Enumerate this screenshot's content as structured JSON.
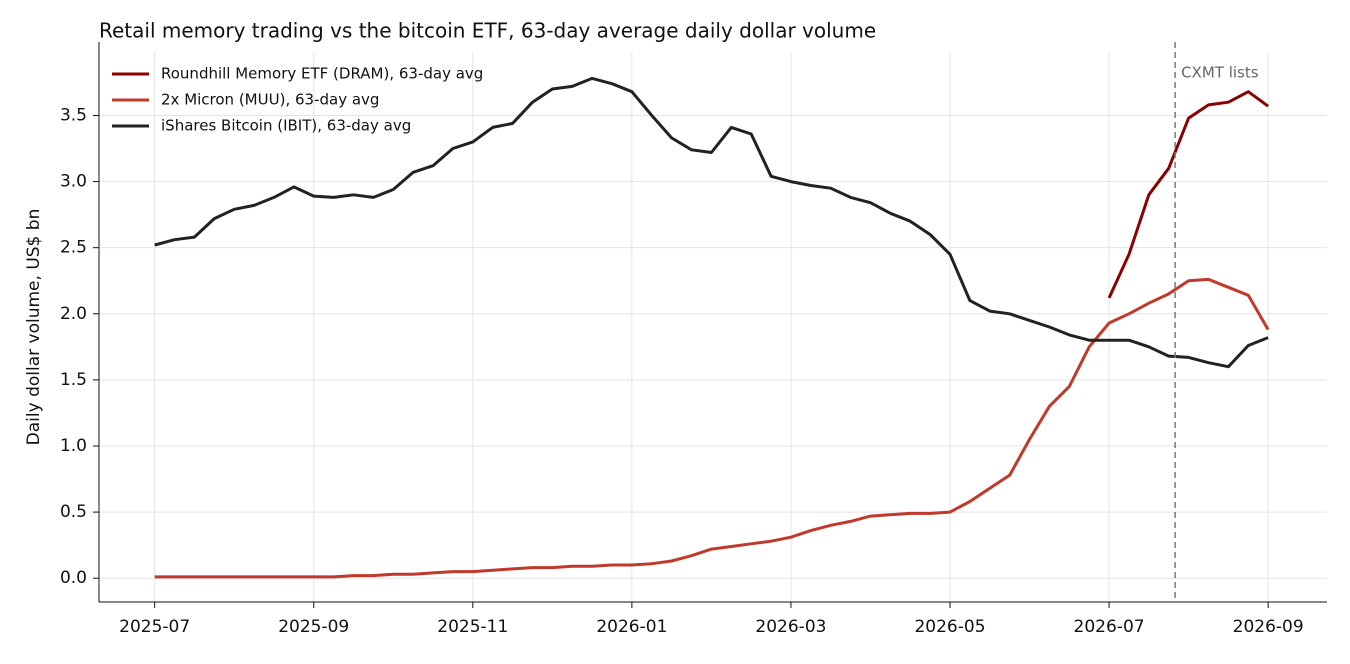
{
  "chart_data": {
    "type": "line",
    "title": "Retail memory trading vs the bitcoin ETF, 63-day average daily dollar volume",
    "y_label": "Daily dollar volume, US$ bn",
    "x": [
      0,
      0.25,
      0.5,
      0.75,
      1,
      1.25,
      1.5,
      1.75,
      2,
      2.25,
      2.5,
      2.75,
      3,
      3.25,
      3.5,
      3.75,
      4,
      4.25,
      4.5,
      4.75,
      5,
      5.25,
      5.5,
      5.75,
      6,
      6.25,
      6.5,
      6.75,
      7,
      7.25,
      7.5,
      7.75,
      8,
      8.25,
      8.5,
      8.75,
      9,
      9.25,
      9.5,
      9.75,
      10,
      10.25,
      10.5,
      10.75,
      11,
      11.25,
      11.5,
      11.75,
      12,
      12.25,
      12.5,
      12.75,
      13,
      13.25,
      13.5,
      13.75,
      14
    ],
    "series": [
      {
        "name": "Roundhill Memory ETF (DRAM), 63-day avg",
        "color": "#8b0000",
        "values": [
          null,
          null,
          null,
          null,
          null,
          null,
          null,
          null,
          null,
          null,
          null,
          null,
          null,
          null,
          null,
          null,
          null,
          null,
          null,
          null,
          null,
          null,
          null,
          null,
          null,
          null,
          null,
          null,
          null,
          null,
          null,
          null,
          null,
          null,
          null,
          null,
          null,
          null,
          null,
          null,
          null,
          null,
          null,
          null,
          null,
          null,
          null,
          null,
          2.12,
          2.45,
          2.9,
          3.1,
          3.48,
          3.58,
          3.6,
          3.68,
          3.57
        ]
      },
      {
        "name": "2x Micron (MUU), 63-day avg",
        "color": "#c0392b",
        "values": [
          0.01,
          0.01,
          0.01,
          0.01,
          0.01,
          0.01,
          0.01,
          0.01,
          0.01,
          0.01,
          0.02,
          0.02,
          0.03,
          0.03,
          0.04,
          0.05,
          0.05,
          0.06,
          0.07,
          0.08,
          0.08,
          0.09,
          0.09,
          0.1,
          0.1,
          0.11,
          0.13,
          0.17,
          0.22,
          0.24,
          0.26,
          0.28,
          0.31,
          0.36,
          0.4,
          0.43,
          0.47,
          0.48,
          0.49,
          0.49,
          0.5,
          0.58,
          0.68,
          0.78,
          1.05,
          1.3,
          1.45,
          1.75,
          1.93,
          2.0,
          2.08,
          2.15,
          2.25,
          2.26,
          2.2,
          2.14,
          1.88
        ]
      },
      {
        "name": "iShares Bitcoin (IBIT), 63-day avg",
        "color": "#222222",
        "values": [
          2.52,
          2.56,
          2.58,
          2.72,
          2.79,
          2.82,
          2.88,
          2.96,
          2.89,
          2.88,
          2.9,
          2.88,
          2.94,
          3.07,
          3.12,
          3.25,
          3.3,
          3.41,
          3.44,
          3.6,
          3.7,
          3.72,
          3.78,
          3.74,
          3.68,
          3.5,
          3.33,
          3.24,
          3.22,
          3.41,
          3.36,
          3.04,
          3.0,
          2.97,
          2.95,
          2.88,
          2.84,
          2.76,
          2.7,
          2.6,
          2.45,
          2.1,
          2.02,
          2.0,
          1.95,
          1.9,
          1.84,
          1.8,
          1.8,
          1.8,
          1.75,
          1.68,
          1.67,
          1.63,
          1.6,
          1.76,
          1.82
        ]
      }
    ],
    "xlim": [
      -0.7,
      14.74
    ],
    "xticks": [
      {
        "value": 0,
        "label": "2025-07"
      },
      {
        "value": 2,
        "label": "2025-09"
      },
      {
        "value": 4,
        "label": "2025-11"
      },
      {
        "value": 6,
        "label": "2026-01"
      },
      {
        "value": 8,
        "label": "2026-03"
      },
      {
        "value": 10,
        "label": "2026-05"
      },
      {
        "value": 12,
        "label": "2026-07"
      },
      {
        "value": 14,
        "label": "2026-09"
      }
    ],
    "ylim": [
      -0.18,
      3.98
    ],
    "yticks": [
      {
        "value": 0,
        "label": "0.0"
      },
      0.5,
      {
        "value": 1,
        "label": "1.0"
      },
      1.5,
      {
        "value": 2,
        "label": "2.0"
      },
      2.5,
      {
        "value": 3,
        "label": "3.0"
      },
      3.5
    ],
    "vline": {
      "x": 12.83,
      "label": "CXMT lists"
    },
    "grid": true,
    "legend": "upper left"
  }
}
